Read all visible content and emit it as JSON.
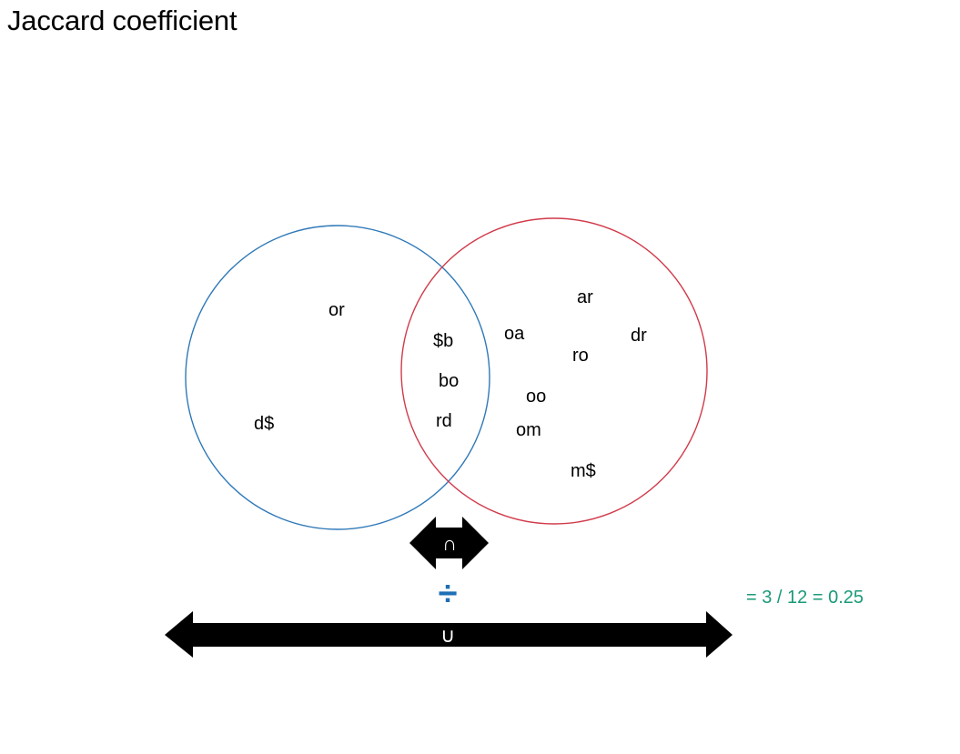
{
  "title": "Jaccard coefficient",
  "colors": {
    "set_a": "#2f79b8",
    "set_b": "#d13b4b",
    "divide": "#1f6fb5",
    "result": "#1a9a78"
  },
  "set_a_only": [
    "or",
    "d$"
  ],
  "intersection": [
    "$b",
    "bo",
    "rd"
  ],
  "set_b_only": [
    "ar",
    "oa",
    "dr",
    "ro",
    "oo",
    "om",
    "m$"
  ],
  "operators": {
    "intersection_symbol": "∩",
    "divide_symbol": "÷",
    "union_symbol": "∪"
  },
  "result_text": "= 3 / 12 = 0.25"
}
